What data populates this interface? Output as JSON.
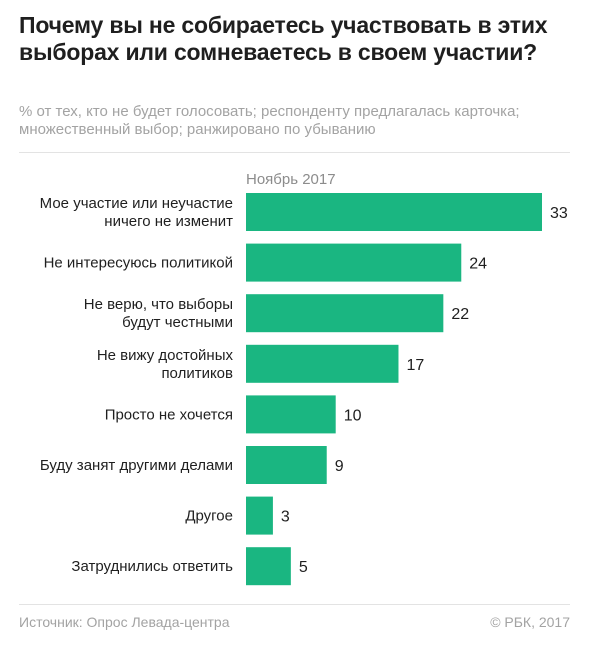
{
  "title": "Почему вы не собираетесь участвовать в этих выборах или сомневаетесь в своем участии?",
  "subtitle": "% от тех, кто не будет голосовать; респонденту предлагалась карточка; множественный выбор; ранжировано по убыванию",
  "footer": {
    "source": "Источник: Опрос Левада-центра",
    "copyright": "© РБК, 2017"
  },
  "chart_data": {
    "type": "bar",
    "orientation": "horizontal",
    "categories": [
      [
        "Мое участие или неучастие",
        "ничего не изменит"
      ],
      [
        "Не интересуюсь политикой"
      ],
      [
        "Не верю, что выборы",
        "будут честными"
      ],
      [
        "Не вижу достойных",
        "политиков"
      ],
      [
        "Просто не хочется"
      ],
      [
        "Буду занят другими делами"
      ],
      [
        "Другое"
      ],
      [
        "Затруднились ответить"
      ]
    ],
    "series": [
      {
        "name": "Ноябрь 2017",
        "values": [
          33,
          24,
          22,
          17,
          10,
          9,
          3,
          5
        ]
      }
    ],
    "bar_color": "#1ab681",
    "xlim": [
      0,
      33
    ],
    "grid": false,
    "data_labels": true
  }
}
